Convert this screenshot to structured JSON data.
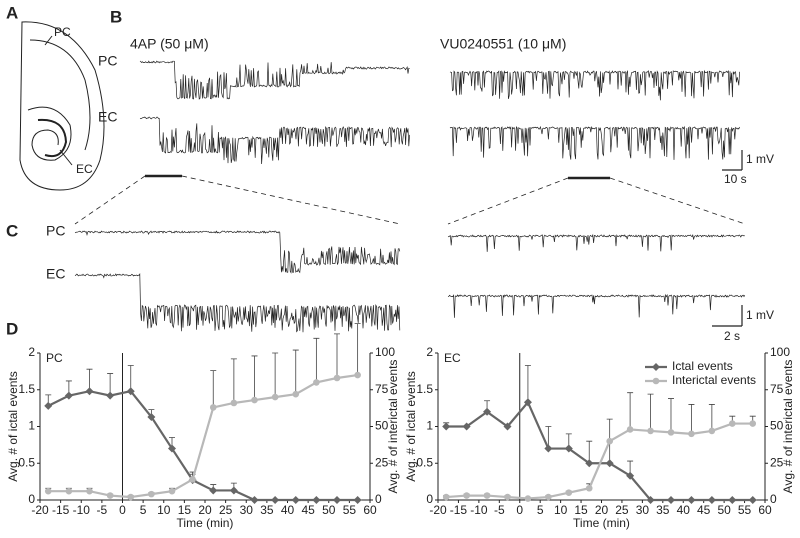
{
  "figure": {
    "panel_labels": [
      "A",
      "B",
      "C",
      "D"
    ],
    "panel_a": {
      "labels": [
        "PC",
        "EC"
      ]
    },
    "panel_b": {
      "titles": [
        "4AP (50 μM)",
        "VU0240551 (10 μM)"
      ],
      "row_labels": [
        "PC",
        "EC"
      ],
      "scale_v": "1 mV",
      "scale_t": "10 s"
    },
    "panel_c": {
      "row_labels": [
        "PC",
        "EC"
      ],
      "scale_v": "1 mV",
      "scale_t": "2 s"
    }
  },
  "chart_data": [
    {
      "type": "line",
      "title": "PC",
      "xlabel": "Time (min)",
      "ylabel": "Avg. # of ictal events",
      "y2label": "Avg. # of interictal events",
      "x": [
        -18,
        -13,
        -8,
        -3,
        2,
        7,
        12,
        17,
        22,
        27,
        32,
        37,
        42,
        47,
        52,
        57
      ],
      "xlim": [
        -20,
        60
      ],
      "xticks": [
        -20,
        -15,
        -10,
        -5,
        0,
        5,
        10,
        15,
        20,
        25,
        30,
        35,
        40,
        45,
        50,
        55,
        60
      ],
      "ylim": [
        0,
        2
      ],
      "yticks": [
        0,
        0.5,
        1,
        1.5,
        2
      ],
      "y2lim": [
        0,
        100
      ],
      "y2ticks": [
        0,
        25,
        50,
        75,
        100
      ],
      "vline": 0,
      "series": [
        {
          "color": "#666666",
          "marker": "diamond",
          "values": [
            1.28,
            1.42,
            1.48,
            1.42,
            1.48,
            1.13,
            0.7,
            0.27,
            0.13,
            0.13,
            0,
            0,
            0,
            0,
            0,
            0
          ],
          "errors": [
            0.15,
            0.2,
            0.3,
            0.3,
            0.35,
            0.1,
            0.15,
            0.08,
            0.08,
            0.1,
            0,
            0,
            0,
            0,
            0,
            0
          ]
        },
        {
          "color": "#b8b8b8",
          "marker": "circle",
          "axis": "y2",
          "values": [
            6,
            6,
            6,
            3,
            2,
            4,
            6,
            14,
            63,
            66,
            68,
            70,
            72,
            80,
            83,
            85
          ],
          "errors": [
            2,
            2,
            2,
            1,
            1,
            1,
            2,
            5,
            25,
            30,
            30,
            30,
            30,
            30,
            30,
            35
          ]
        }
      ]
    },
    {
      "type": "line",
      "title": "EC",
      "xlabel": "Time (min)",
      "ylabel": "Avg. # of ictal events",
      "y2label": "Avg. # of interictal events",
      "x": [
        -18,
        -13,
        -8,
        -3,
        2,
        7,
        12,
        17,
        22,
        27,
        32,
        37,
        42,
        47,
        52,
        57
      ],
      "xlim": [
        -20,
        60
      ],
      "xticks": [
        -20,
        -15,
        -10,
        -5,
        0,
        5,
        10,
        15,
        20,
        25,
        30,
        35,
        40,
        45,
        50,
        55,
        60
      ],
      "ylim": [
        0,
        2
      ],
      "yticks": [
        0,
        0.5,
        1,
        1.5,
        2
      ],
      "y2lim": [
        0,
        100
      ],
      "y2ticks": [
        0,
        25,
        50,
        75,
        100
      ],
      "vline": 0,
      "legend": "upper right",
      "series": [
        {
          "name": "Ictal events",
          "color": "#666666",
          "marker": "diamond",
          "values": [
            1.0,
            1.0,
            1.2,
            1.0,
            1.33,
            0.7,
            0.7,
            0.5,
            0.5,
            0.33,
            0,
            0,
            0,
            0,
            0,
            0
          ],
          "errors": [
            0.05,
            0,
            0.15,
            0,
            0.5,
            0.3,
            0.2,
            0.3,
            0.3,
            0.2,
            0,
            0,
            0,
            0,
            0,
            0
          ]
        },
        {
          "name": "Interictal events",
          "color": "#b8b8b8",
          "marker": "circle",
          "axis": "y2",
          "values": [
            2,
            3,
            3,
            2,
            1,
            2,
            5,
            8,
            40,
            48,
            47,
            46,
            45,
            47,
            52,
            52
          ],
          "errors": [
            1,
            1,
            1,
            1,
            0,
            1,
            1,
            3,
            15,
            25,
            25,
            23,
            20,
            18,
            5,
            5
          ]
        }
      ]
    }
  ]
}
